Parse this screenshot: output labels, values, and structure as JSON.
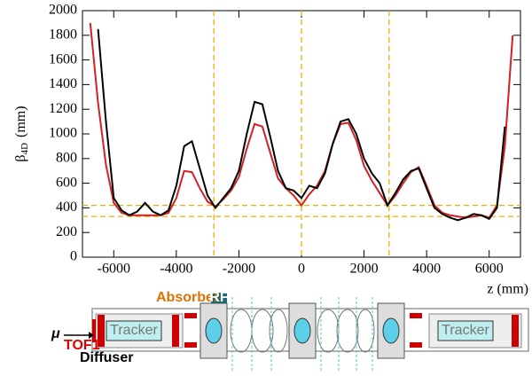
{
  "chart_data": {
    "type": "line",
    "ylabel": {
      "symbol": "β",
      "subscript": "4D",
      "unit": "(mm)"
    },
    "xlabel": "z (mm)",
    "x": [
      -6750,
      -6500,
      -6250,
      -6000,
      -5750,
      -5500,
      -5250,
      -5000,
      -4750,
      -4500,
      -4250,
      -4000,
      -3750,
      -3500,
      -3250,
      -3000,
      -2750,
      -2500,
      -2250,
      -2000,
      -1750,
      -1500,
      -1250,
      -1000,
      -750,
      -500,
      -250,
      0,
      250,
      500,
      750,
      1000,
      1250,
      1500,
      1750,
      2000,
      2250,
      2500,
      2750,
      3000,
      3250,
      3500,
      3750,
      4000,
      4250,
      4500,
      4750,
      5000,
      5250,
      5500,
      5750,
      6000,
      6250,
      6500,
      6750
    ],
    "series": [
      {
        "color": "#d42020",
        "values": [
          1900,
          1250,
          750,
          440,
          360,
          340,
          340,
          340,
          340,
          340,
          360,
          480,
          700,
          690,
          560,
          450,
          410,
          470,
          540,
          650,
          880,
          1080,
          1060,
          850,
          640,
          560,
          500,
          420,
          510,
          580,
          700,
          920,
          1080,
          1090,
          950,
          740,
          620,
          520,
          420,
          500,
          600,
          690,
          730,
          580,
          420,
          360,
          340,
          330,
          320,
          330,
          340,
          320,
          420,
          900,
          1800
        ]
      },
      {
        "color": "#000000",
        "values": [
          null,
          1850,
          1100,
          480,
          380,
          340,
          370,
          440,
          370,
          340,
          380,
          580,
          900,
          940,
          720,
          500,
          400,
          480,
          560,
          700,
          1000,
          1260,
          1240,
          980,
          700,
          560,
          540,
          480,
          580,
          560,
          680,
          920,
          1100,
          1120,
          1000,
          800,
          680,
          600,
          420,
          520,
          630,
          700,
          720,
          560,
          400,
          350,
          320,
          300,
          320,
          350,
          340,
          310,
          400,
          1060,
          null
        ]
      }
    ],
    "xlim": [
      -7000,
      7000
    ],
    "ylim": [
      0,
      2000
    ],
    "xticks": [
      -6000,
      -4000,
      -2000,
      0,
      2000,
      4000,
      6000
    ],
    "yticks": [
      0,
      200,
      400,
      600,
      800,
      1000,
      1200,
      1400,
      1600,
      1800,
      2000
    ],
    "vlines": [
      -2800,
      0,
      2800
    ],
    "hlines": [
      420,
      330
    ],
    "refline_color": "#e6b000"
  },
  "schematic": {
    "absorber": "Absorber",
    "rf": "RF",
    "particle": "μ",
    "tof": "TOF1",
    "diffuser": "Diffuser",
    "tracker_left": "Tracker",
    "tracker_right": "Tracker"
  }
}
